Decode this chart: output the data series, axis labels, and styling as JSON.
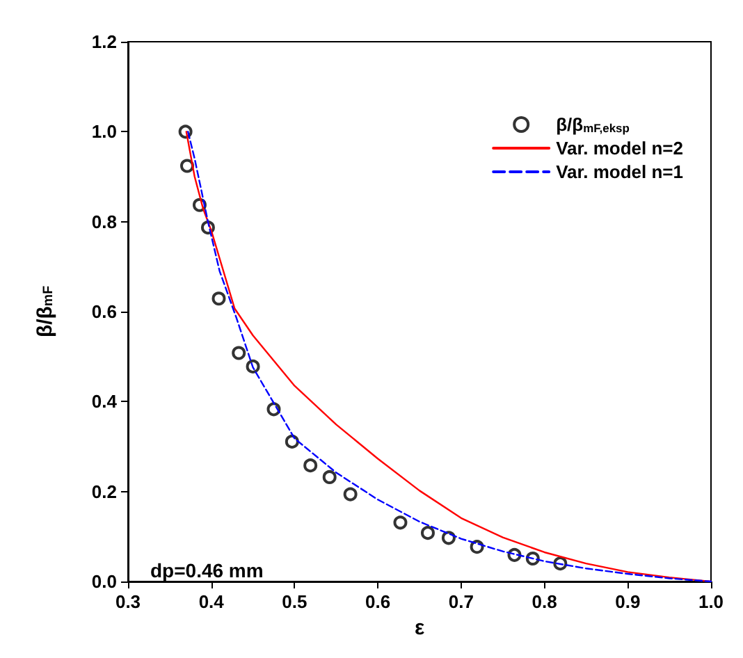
{
  "chart_data": {
    "type": "scatter",
    "xlabel": "ε",
    "ylabel": "β/β$_{mF}$",
    "xlim": [
      0.3,
      1.0
    ],
    "xticks": [
      0.3,
      0.4,
      0.5,
      0.6,
      0.7,
      0.8,
      0.9,
      {
        "value": 1,
        "label": "1.0"
      }
    ],
    "ylim": [
      0,
      1.2
    ],
    "yticks": [
      {
        "value": 0,
        "label": "0.0"
      },
      0.2,
      0.4,
      0.6,
      0.8,
      {
        "value": 1,
        "label": "1.0"
      },
      1.2
    ],
    "grid": false,
    "legend": "top right",
    "annotations": [
      "dp=0.46 mm"
    ],
    "series": [
      {
        "name": "β/β$_{mF,eksp}$",
        "marker": "circle",
        "color": "#000000",
        "x": [
          0.369,
          0.371,
          0.386,
          0.396,
          0.409,
          0.433,
          0.45,
          0.475,
          0.497,
          0.519,
          0.542,
          0.567,
          0.627,
          0.66,
          0.685,
          0.719,
          0.764,
          0.786,
          0.819
        ],
        "values": [
          1.0,
          0.924,
          0.837,
          0.787,
          0.629,
          0.508,
          0.478,
          0.383,
          0.311,
          0.258,
          0.232,
          0.194,
          0.131,
          0.108,
          0.097,
          0.077,
          0.059,
          0.051,
          0.04
        ]
      },
      {
        "name": "Var. model n=2",
        "type": "line",
        "line_style": "solid",
        "color": "#ff0000",
        "x": [
          0.37,
          0.38,
          0.39,
          0.4,
          0.428,
          0.45,
          0.5,
          0.55,
          0.6,
          0.65,
          0.7,
          0.75,
          0.8,
          0.85,
          0.9,
          0.95,
          1.0
        ],
        "values": [
          1.0,
          0.9,
          0.83,
          0.78,
          0.607,
          0.547,
          0.435,
          0.349,
          0.273,
          0.202,
          0.141,
          0.098,
          0.065,
          0.04,
          0.021,
          0.009,
          0.0
        ]
      },
      {
        "name": "Var. model n=1",
        "type": "line",
        "line_style": "dashed",
        "color": "#0000ff",
        "x": [
          0.372,
          0.38,
          0.396,
          0.41,
          0.43,
          0.45,
          0.5,
          0.55,
          0.6,
          0.65,
          0.7,
          0.75,
          0.8,
          0.85,
          0.9,
          0.95,
          1.0
        ],
        "values": [
          1.0,
          0.94,
          0.8,
          0.69,
          0.587,
          0.476,
          0.318,
          0.242,
          0.182,
          0.133,
          0.095,
          0.067,
          0.045,
          0.029,
          0.017,
          0.007,
          0.0
        ]
      }
    ]
  }
}
